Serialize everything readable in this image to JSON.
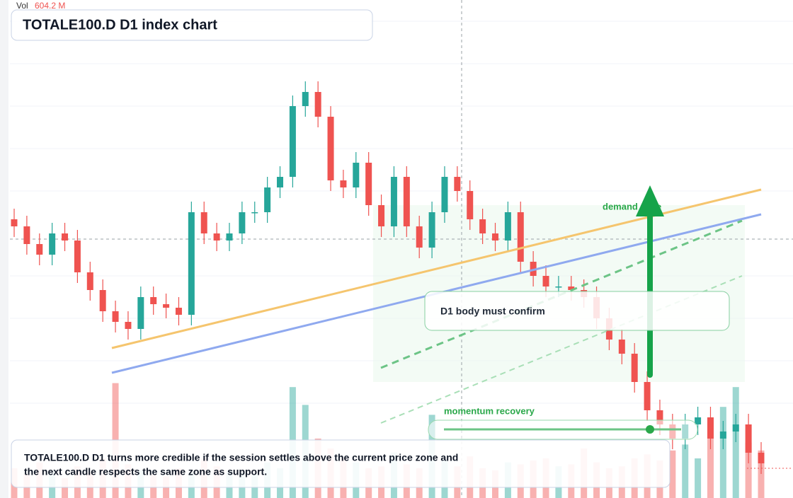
{
  "header": {
    "vol_label": "Vol",
    "vol_value": "604.2 M",
    "title": "TOTALE100.D D1 index chart"
  },
  "chart_data": {
    "type": "candlestick",
    "open": [
      394,
      384,
      359,
      344,
      374,
      364,
      319,
      294,
      264,
      249,
      239,
      284,
      274,
      269,
      259,
      404,
      374,
      364,
      374,
      404,
      404,
      439,
      454,
      554,
      574,
      539,
      449,
      439,
      474,
      414,
      384,
      454,
      384,
      354,
      404,
      454,
      434,
      394,
      374,
      364,
      404,
      334,
      314,
      299,
      299,
      294,
      284,
      254,
      224,
      204,
      164,
      124,
      104,
      84,
      104,
      114,
      84,
      94,
      104,
      64
    ],
    "high": [
      409,
      399,
      374,
      389,
      389,
      379,
      334,
      309,
      279,
      264,
      299,
      299,
      289,
      284,
      419,
      419,
      389,
      389,
      419,
      419,
      454,
      469,
      569,
      589,
      589,
      554,
      464,
      489,
      489,
      429,
      469,
      469,
      399,
      419,
      469,
      469,
      449,
      409,
      389,
      419,
      419,
      349,
      329,
      314,
      314,
      309,
      299,
      269,
      239,
      219,
      179,
      139,
      119,
      119,
      129,
      129,
      109,
      119,
      119,
      79
    ],
    "low": [
      369,
      344,
      329,
      329,
      349,
      304,
      279,
      249,
      234,
      224,
      224,
      259,
      254,
      244,
      244,
      359,
      349,
      349,
      359,
      389,
      389,
      424,
      439,
      539,
      524,
      434,
      424,
      424,
      399,
      369,
      369,
      369,
      339,
      339,
      389,
      419,
      379,
      359,
      349,
      349,
      319,
      299,
      284,
      284,
      279,
      269,
      239,
      209,
      189,
      149,
      109,
      89,
      69,
      69,
      89,
      69,
      69,
      79,
      49,
      34
    ],
    "close": [
      384,
      359,
      344,
      374,
      364,
      319,
      294,
      264,
      249,
      239,
      284,
      274,
      269,
      259,
      404,
      374,
      364,
      374,
      404,
      404,
      439,
      454,
      554,
      574,
      539,
      449,
      439,
      474,
      414,
      384,
      454,
      384,
      354,
      404,
      454,
      434,
      394,
      374,
      364,
      404,
      334,
      314,
      299,
      299,
      294,
      284,
      254,
      224,
      204,
      164,
      124,
      104,
      84,
      104,
      114,
      84,
      94,
      104,
      64,
      49
    ],
    "volume": [
      150,
      120,
      180,
      140,
      100,
      160,
      130,
      200,
      580,
      170,
      140,
      120,
      110,
      150,
      130,
      200,
      160,
      140,
      130,
      120,
      180,
      150,
      560,
      470,
      300,
      250,
      200,
      180,
      150,
      160,
      230,
      170,
      150,
      420,
      190,
      160,
      210,
      150,
      140,
      180,
      170,
      190,
      200,
      160,
      170,
      250,
      180,
      150,
      160,
      200,
      220,
      190,
      240,
      270,
      200,
      380,
      460,
      560,
      280,
      240
    ],
    "up_color": "#26a69a",
    "down_color": "#ef5350",
    "ylim": [
      0,
      704
    ],
    "volume_lim": [
      0,
      2000
    ]
  },
  "annotations": {
    "zone_label": "demand zone",
    "callout": "D1 body must confirm",
    "momentum_label": "momentum recovery"
  },
  "note": {
    "lines": [
      "TOTALE100.D D1 turns more credible if the session settles above the current price zone and",
      "the next candle respects the same zone as support."
    ]
  }
}
